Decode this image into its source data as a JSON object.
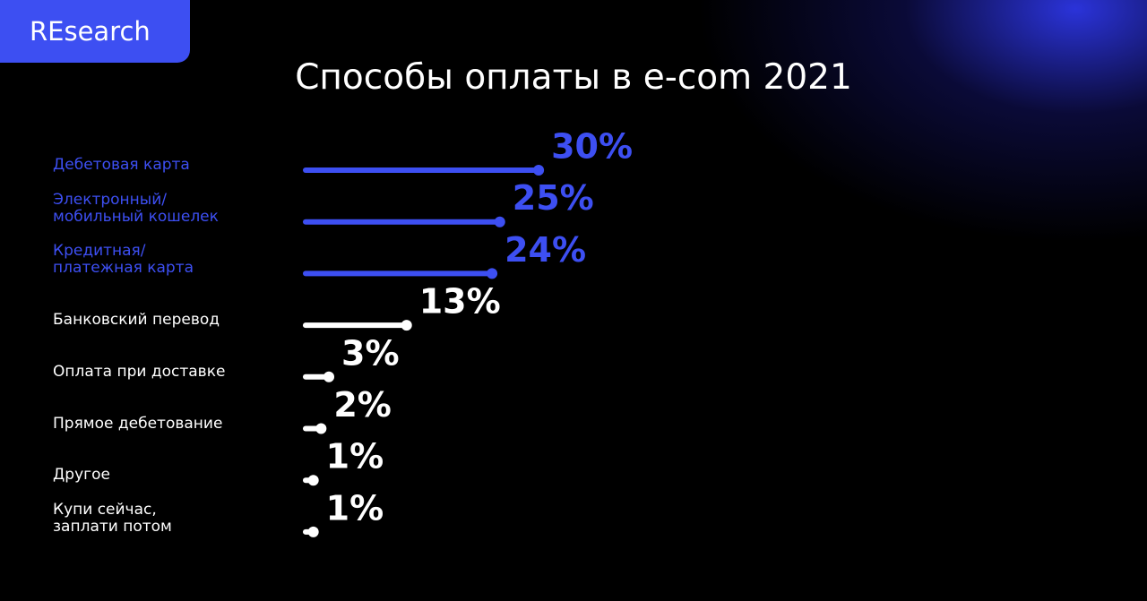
{
  "badge": "REsearch",
  "chart_data": {
    "type": "bar",
    "orientation": "horizontal",
    "title": "Способы оплаты в e-com 2021",
    "categories": [
      "Дебетовая карта",
      "Электронный/мобильный кошелек",
      "Кредитная/платежная карта",
      "Банковский перевод",
      "Оплата при доставке",
      "Прямое дебетование",
      "Другое",
      "Купи сейчас, заплати потом"
    ],
    "values": [
      30,
      25,
      24,
      13,
      3,
      2,
      1,
      1
    ],
    "value_labels": [
      "30%",
      "25%",
      "24%",
      "13%",
      "3%",
      "2%",
      "1%",
      "1%"
    ],
    "colors": [
      "#3d4ff2",
      "#3d4ff2",
      "#3d4ff2",
      "#ffffff",
      "#ffffff",
      "#ffffff",
      "#ffffff",
      "#ffffff"
    ],
    "xlim": [
      0,
      100
    ]
  }
}
